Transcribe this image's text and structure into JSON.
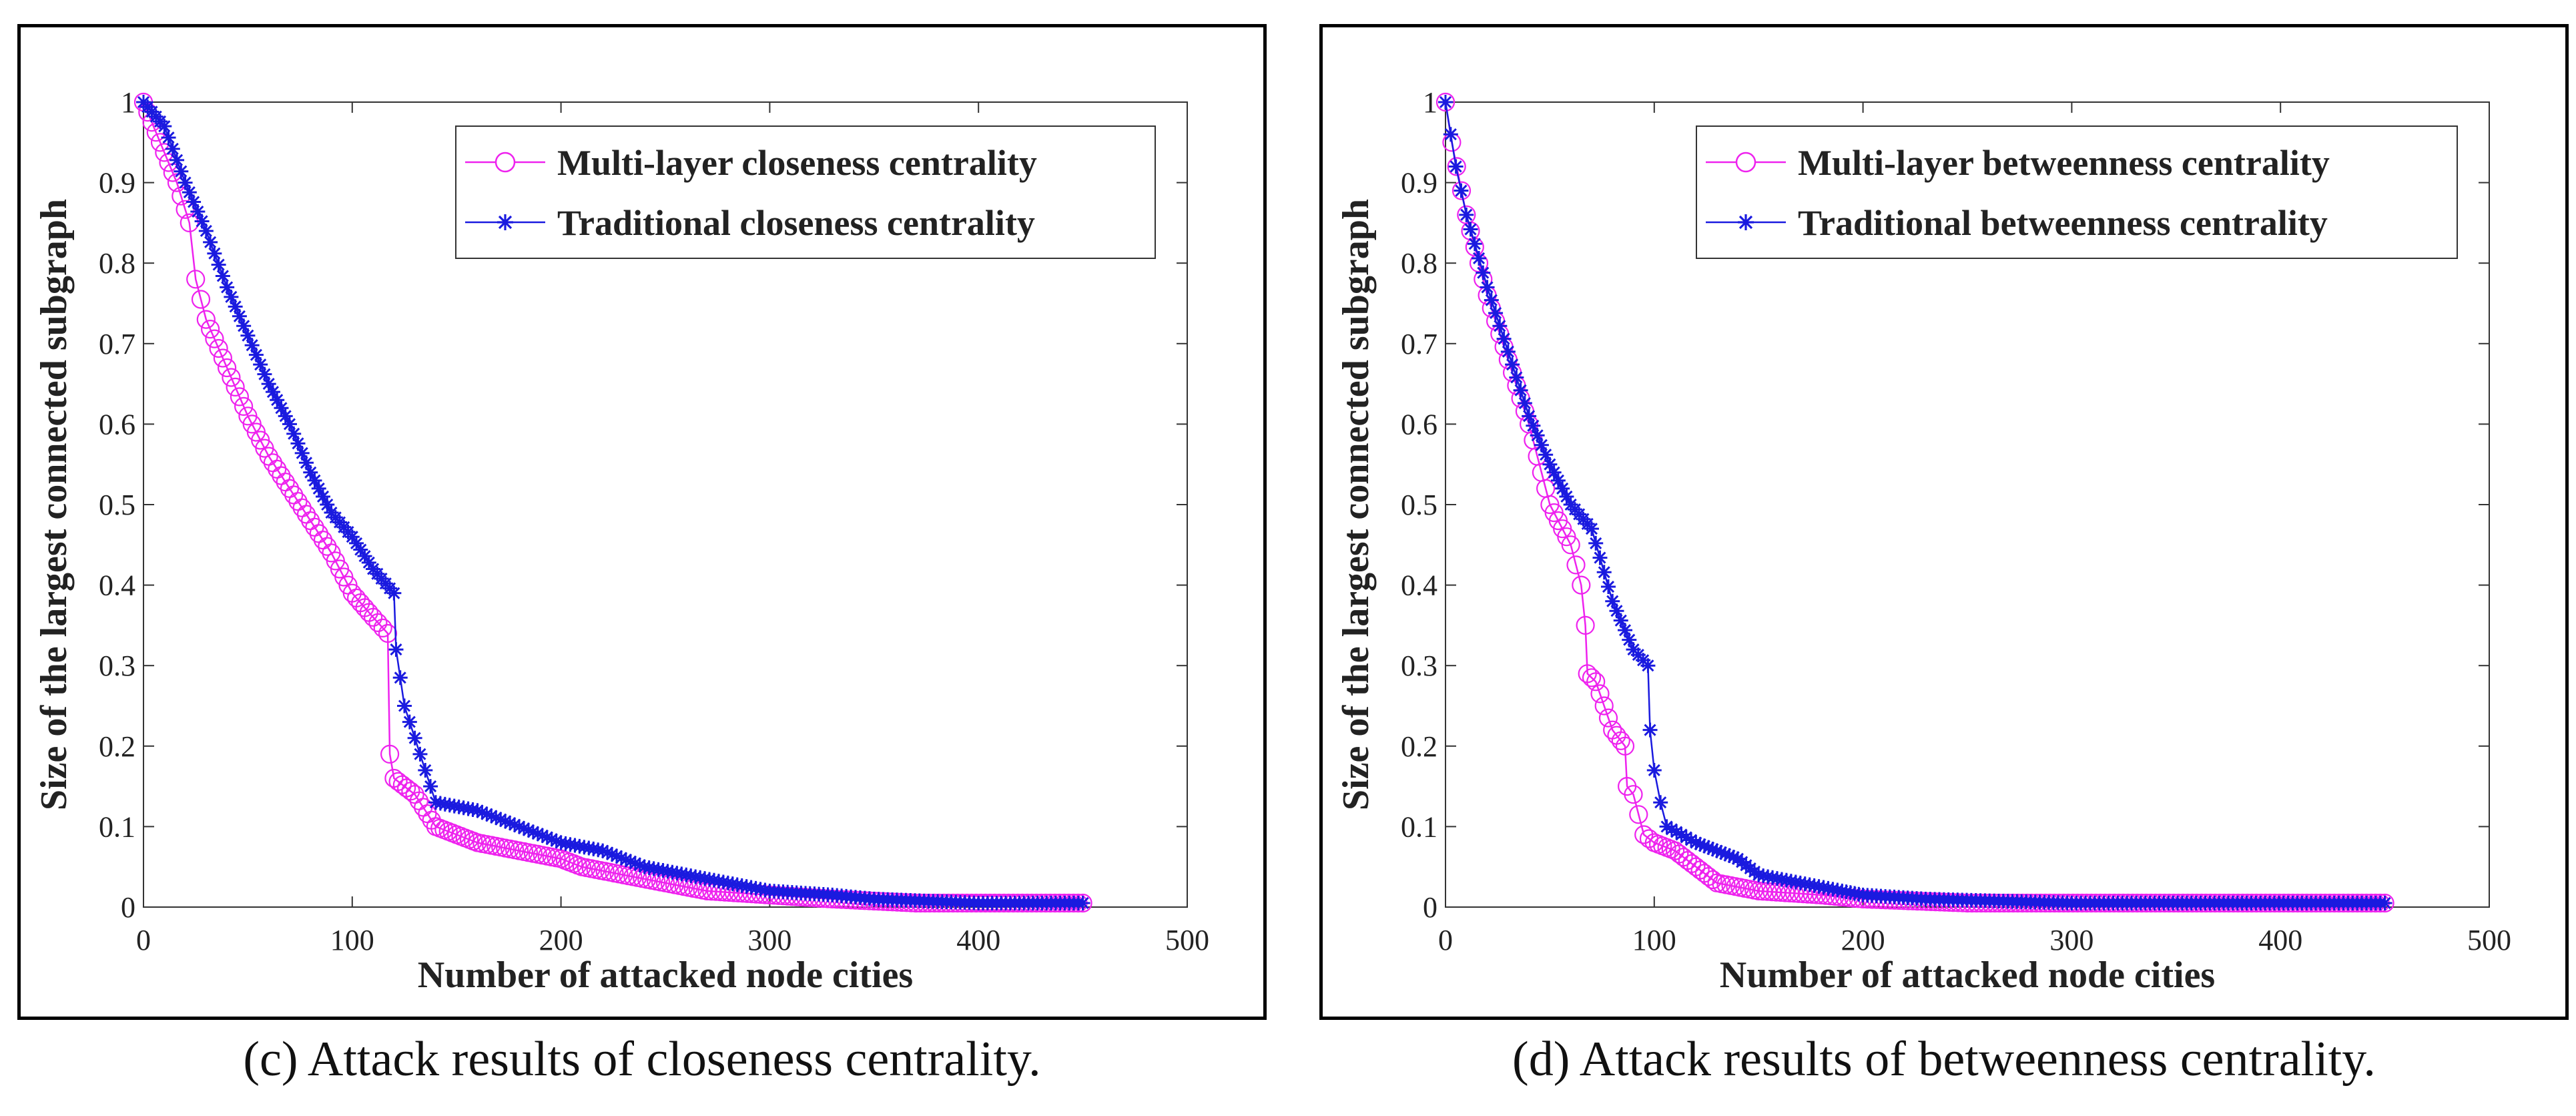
{
  "captions": {
    "c": "(c) Attack results of closeness centrality.",
    "d": "(d) Attack results of betweenness centrality."
  },
  "colors": {
    "multi_layer": "#ee22ee",
    "traditional": "#1a1adf"
  },
  "chart_data": [
    {
      "type": "line",
      "title": "",
      "xlabel": "Number of attacked node cities",
      "ylabel": "Size of the largest connected subgraph",
      "xlim": [
        0,
        500
      ],
      "ylim": [
        0,
        1
      ],
      "xticks": [
        0,
        100,
        200,
        300,
        400,
        500
      ],
      "yticks": [
        0,
        0.1,
        0.2,
        0.3,
        0.4,
        0.5,
        0.6,
        0.7,
        0.8,
        0.9,
        1
      ],
      "xtick_labels": [
        "0",
        "100",
        "200",
        "300",
        "400",
        "500"
      ],
      "ytick_labels": [
        "0",
        "0.1",
        "0.2",
        "0.3",
        "0.4",
        "0.5",
        "0.6",
        "0.7",
        "0.8",
        "0.9",
        "1"
      ],
      "grid": false,
      "legend": "top-right",
      "series": [
        {
          "name": "Multi-layer closeness centrality",
          "marker": "circle",
          "color": "#ee22ee",
          "points": [
            [
              0,
              1.0
            ],
            [
              8,
              0.95
            ],
            [
              16,
              0.9
            ],
            [
              22,
              0.85
            ],
            [
              25,
              0.78
            ],
            [
              30,
              0.73
            ],
            [
              40,
              0.67
            ],
            [
              50,
              0.61
            ],
            [
              60,
              0.56
            ],
            [
              70,
              0.52
            ],
            [
              80,
              0.48
            ],
            [
              90,
              0.44
            ],
            [
              100,
              0.39
            ],
            [
              110,
              0.36
            ],
            [
              117,
              0.34
            ],
            [
              118,
              0.19
            ],
            [
              120,
              0.16
            ],
            [
              130,
              0.14
            ],
            [
              140,
              0.1
            ],
            [
              150,
              0.09
            ],
            [
              160,
              0.08
            ],
            [
              180,
              0.07
            ],
            [
              200,
              0.06
            ],
            [
              210,
              0.05
            ],
            [
              230,
              0.04
            ],
            [
              250,
              0.03
            ],
            [
              270,
              0.02
            ],
            [
              300,
              0.015
            ],
            [
              330,
              0.01
            ],
            [
              370,
              0.005
            ],
            [
              450,
              0.005
            ]
          ]
        },
        {
          "name": "Traditional closeness centrality",
          "marker": "asterisk",
          "color": "#1a1adf",
          "points": [
            [
              0,
              1.0
            ],
            [
              10,
              0.97
            ],
            [
              20,
              0.9
            ],
            [
              30,
              0.84
            ],
            [
              40,
              0.77
            ],
            [
              50,
              0.71
            ],
            [
              60,
              0.65
            ],
            [
              70,
              0.6
            ],
            [
              80,
              0.54
            ],
            [
              90,
              0.49
            ],
            [
              100,
              0.46
            ],
            [
              110,
              0.42
            ],
            [
              120,
              0.39
            ],
            [
              121,
              0.32
            ],
            [
              125,
              0.25
            ],
            [
              130,
              0.21
            ],
            [
              135,
              0.17
            ],
            [
              140,
              0.13
            ],
            [
              160,
              0.12
            ],
            [
              180,
              0.1
            ],
            [
              200,
              0.08
            ],
            [
              220,
              0.07
            ],
            [
              240,
              0.05
            ],
            [
              260,
              0.04
            ],
            [
              280,
              0.03
            ],
            [
              300,
              0.02
            ],
            [
              330,
              0.015
            ],
            [
              350,
              0.01
            ],
            [
              400,
              0.005
            ],
            [
              450,
              0.005
            ]
          ]
        }
      ]
    },
    {
      "type": "line",
      "title": "",
      "xlabel": "Number of attacked node cities",
      "ylabel": "Size of the largest connected subgraph",
      "xlim": [
        0,
        500
      ],
      "ylim": [
        0,
        1
      ],
      "xticks": [
        0,
        100,
        200,
        300,
        400,
        500
      ],
      "yticks": [
        0,
        0.1,
        0.2,
        0.3,
        0.4,
        0.5,
        0.6,
        0.7,
        0.8,
        0.9,
        1
      ],
      "xtick_labels": [
        "0",
        "100",
        "200",
        "300",
        "400",
        "500"
      ],
      "ytick_labels": [
        "0",
        "0.1",
        "0.2",
        "0.3",
        "0.4",
        "0.5",
        "0.6",
        "0.7",
        "0.8",
        "0.9",
        "1"
      ],
      "grid": false,
      "legend": "top-right",
      "series": [
        {
          "name": "Multi-layer betweenness centrality",
          "marker": "circle",
          "color": "#ee22ee",
          "points": [
            [
              0,
              1.0
            ],
            [
              3,
              0.95
            ],
            [
              10,
              0.86
            ],
            [
              20,
              0.76
            ],
            [
              30,
              0.68
            ],
            [
              40,
              0.6
            ],
            [
              50,
              0.5
            ],
            [
              60,
              0.45
            ],
            [
              65,
              0.4
            ],
            [
              67,
              0.35
            ],
            [
              68,
              0.29
            ],
            [
              72,
              0.28
            ],
            [
              80,
              0.22
            ],
            [
              86,
              0.2
            ],
            [
              87,
              0.15
            ],
            [
              90,
              0.14
            ],
            [
              95,
              0.09
            ],
            [
              100,
              0.08
            ],
            [
              110,
              0.07
            ],
            [
              120,
              0.05
            ],
            [
              130,
              0.03
            ],
            [
              150,
              0.02
            ],
            [
              180,
              0.015
            ],
            [
              200,
              0.01
            ],
            [
              250,
              0.005
            ],
            [
              450,
              0.005
            ]
          ]
        },
        {
          "name": "Traditional betweenness centrality",
          "marker": "asterisk",
          "color": "#1a1adf",
          "points": [
            [
              0,
              1.0
            ],
            [
              5,
              0.92
            ],
            [
              10,
              0.86
            ],
            [
              20,
              0.77
            ],
            [
              30,
              0.69
            ],
            [
              40,
              0.61
            ],
            [
              50,
              0.55
            ],
            [
              60,
              0.5
            ],
            [
              70,
              0.47
            ],
            [
              80,
              0.38
            ],
            [
              90,
              0.32
            ],
            [
              97,
              0.3
            ],
            [
              98,
              0.22
            ],
            [
              100,
              0.17
            ],
            [
              103,
              0.13
            ],
            [
              106,
              0.1
            ],
            [
              120,
              0.08
            ],
            [
              130,
              0.07
            ],
            [
              140,
              0.06
            ],
            [
              150,
              0.04
            ],
            [
              170,
              0.03
            ],
            [
              190,
              0.02
            ],
            [
              200,
              0.015
            ],
            [
              230,
              0.01
            ],
            [
              300,
              0.005
            ],
            [
              450,
              0.005
            ]
          ]
        }
      ]
    }
  ]
}
